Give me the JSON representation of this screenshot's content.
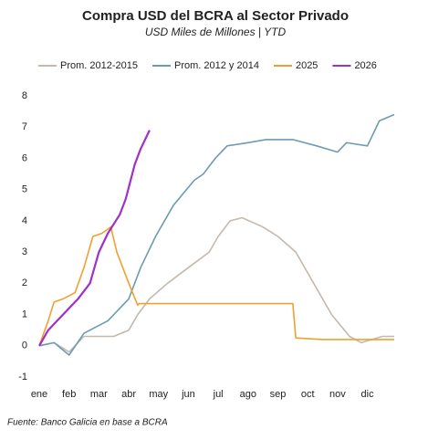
{
  "chart_data": {
    "type": "line",
    "title": "Compra USD del BCRA al Sector Privado",
    "subtitle": "USD Miles de Millones | YTD",
    "source": "Fuente: Banco Galicia en base a BCRA",
    "xlim": [
      0,
      11.9
    ],
    "ylim": [
      -1,
      8
    ],
    "yticks": [
      -1,
      0,
      1,
      2,
      3,
      4,
      5,
      6,
      7,
      8
    ],
    "xticks": [
      {
        "value": 0,
        "label": "ene"
      },
      {
        "value": 1,
        "label": "feb"
      },
      {
        "value": 2,
        "label": "mar"
      },
      {
        "value": 3,
        "label": "abr"
      },
      {
        "value": 4,
        "label": "may"
      },
      {
        "value": 5,
        "label": "jun"
      },
      {
        "value": 6,
        "label": "jul"
      },
      {
        "value": 7,
        "label": "ago"
      },
      {
        "value": 8,
        "label": "sep"
      },
      {
        "value": 9,
        "label": "oct"
      },
      {
        "value": 10,
        "label": "nov"
      },
      {
        "value": 11,
        "label": "dic"
      }
    ],
    "grid": false,
    "series": [
      {
        "name": "Prom. 2012-2015",
        "color": "#c4b9ad",
        "x": [
          0,
          0.5,
          1.0,
          1.5,
          2.5,
          3.0,
          3.3,
          3.7,
          4.3,
          5.0,
          5.7,
          6.0,
          6.4,
          6.8,
          7.5,
          8.0,
          8.6,
          9.2,
          9.8,
          10.4,
          10.8,
          11.5,
          11.9
        ],
        "values": [
          0,
          0.1,
          -0.2,
          0.3,
          0.3,
          0.5,
          1.0,
          1.5,
          2.0,
          2.5,
          3.0,
          3.5,
          4.0,
          4.1,
          3.8,
          3.5,
          3.0,
          2.0,
          1.0,
          0.3,
          0.1,
          0.3,
          0.3
        ]
      },
      {
        "name": "Prom. 2012 y 2014",
        "color": "#6b9cb2",
        "x": [
          0,
          0.5,
          1.0,
          1.5,
          2.3,
          3.0,
          3.4,
          3.9,
          4.5,
          5.2,
          5.5,
          5.9,
          6.3,
          7.0,
          7.6,
          8.5,
          9.3,
          10.0,
          10.3,
          11.0,
          11.4,
          11.9
        ],
        "values": [
          0,
          0.1,
          -0.3,
          0.4,
          0.8,
          1.5,
          2.5,
          3.5,
          4.5,
          5.3,
          5.5,
          6.0,
          6.4,
          6.5,
          6.6,
          6.6,
          6.4,
          6.2,
          6.5,
          6.4,
          7.2,
          7.4
        ]
      },
      {
        "name": "2025",
        "color": "#f0a030",
        "x": [
          0,
          0.3,
          0.5,
          0.8,
          1.2,
          1.5,
          1.8,
          2.1,
          2.4,
          2.6,
          3.0,
          3.3,
          3.35,
          8.5,
          8.6,
          9.5,
          11.9
        ],
        "values": [
          0,
          0.8,
          1.4,
          1.5,
          1.7,
          2.5,
          3.5,
          3.6,
          3.8,
          3.0,
          2.0,
          1.3,
          1.35,
          1.35,
          0.25,
          0.2,
          0.2
        ]
      },
      {
        "name": "2026",
        "color": "#a030c8",
        "x": [
          0,
          0.3,
          0.6,
          0.9,
          1.3,
          1.7,
          2.0,
          2.3,
          2.7,
          2.9,
          3.2,
          3.4,
          3.7
        ],
        "values": [
          0,
          0.5,
          0.8,
          1.1,
          1.5,
          2.0,
          3.0,
          3.6,
          4.2,
          4.7,
          5.8,
          6.3,
          6.9
        ]
      }
    ]
  }
}
